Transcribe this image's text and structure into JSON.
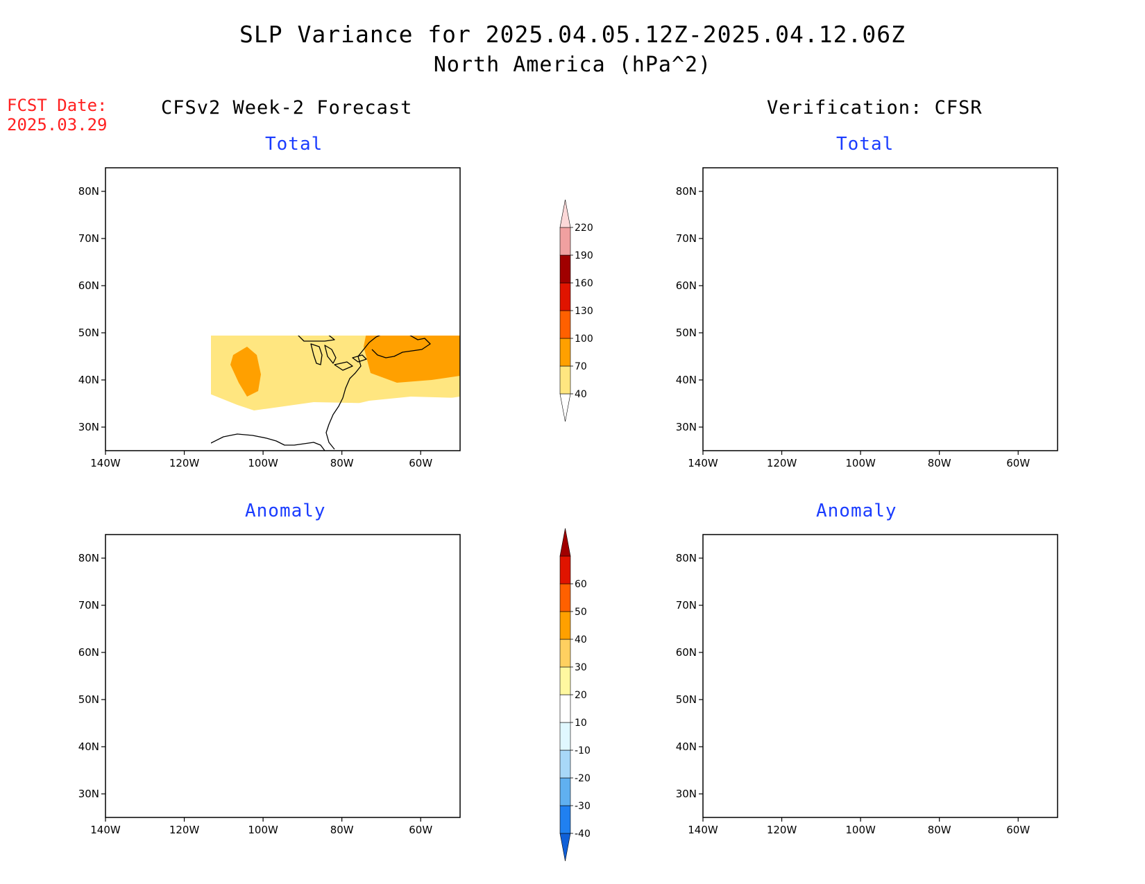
{
  "header": {
    "title": "SLP Variance for 2025.04.05.12Z-2025.04.12.06Z",
    "subtitle": "North America (hPa^2)",
    "fcst_label": "FCST Date:",
    "fcst_date": "2025.03.29"
  },
  "columns": {
    "left": "CFSv2 Week-2 Forecast",
    "right": "Verification: CFSR"
  },
  "panels": [
    {
      "title": "Total",
      "kind": "total",
      "source": "forecast"
    },
    {
      "title": "Total",
      "kind": "total",
      "source": "verification"
    },
    {
      "title": "Anomaly",
      "kind": "anomaly",
      "source": "forecast"
    },
    {
      "title": "Anomaly",
      "kind": "anomaly",
      "source": "verification"
    }
  ],
  "axes": {
    "lon_ticks": [
      "140W",
      "120W",
      "100W",
      "80W",
      "60W"
    ],
    "lat_ticks": [
      "80N",
      "70N",
      "60N",
      "50N",
      "40N",
      "30N"
    ],
    "lon_values": [
      -140,
      -120,
      -100,
      -80,
      -60
    ],
    "lat_values": [
      80,
      70,
      60,
      50,
      40,
      30
    ],
    "lon_range": [
      -140,
      -50
    ],
    "lat_range": [
      25,
      85
    ]
  },
  "total_scale": {
    "levels": [
      "40",
      "70",
      "100",
      "130",
      "160",
      "190",
      "220"
    ],
    "colors": [
      "#ffffff",
      "#ffe680",
      "#ffa000",
      "#ff6000",
      "#e01400",
      "#a00000",
      "#f0a0a0",
      "#fcd8d8"
    ]
  },
  "anomaly_scale": {
    "levels": [
      "-40",
      "-30",
      "-20",
      "-10",
      "10",
      "20",
      "30",
      "40",
      "50",
      "60"
    ],
    "colors": [
      "#1060d8",
      "#2080f0",
      "#60b0f0",
      "#a8d8f8",
      "#e0f8ff",
      "#ffffff",
      "#fff8a0",
      "#ffd060",
      "#ffa000",
      "#ff6000",
      "#e01400",
      "#a00000"
    ]
  }
}
